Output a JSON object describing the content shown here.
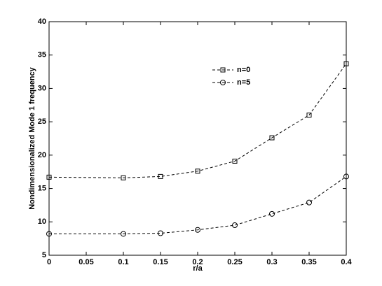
{
  "chart_data": {
    "type": "line",
    "xlabel": "r/a",
    "ylabel": "Nondimensionalized Mode 1 frequency",
    "x": [
      0,
      0.1,
      0.15,
      0.2,
      0.25,
      0.3,
      0.35,
      0.4
    ],
    "series": [
      {
        "name": "n=0",
        "color": "#000000",
        "marker": "square",
        "values": [
          16.7,
          16.6,
          16.8,
          17.6,
          19.1,
          22.6,
          26.0,
          33.7
        ]
      },
      {
        "name": "n=5",
        "color": "#000000",
        "marker": "circle",
        "values": [
          8.2,
          8.2,
          8.3,
          8.8,
          9.5,
          11.2,
          12.9,
          16.8
        ]
      }
    ],
    "xlim": [
      0,
      0.4
    ],
    "xticks": [
      0,
      0.05,
      0.1,
      0.15,
      0.2,
      0.25,
      0.3,
      0.35,
      0.4
    ],
    "ylim": [
      5,
      40
    ],
    "yticks": [
      5,
      10,
      15,
      20,
      25,
      30,
      35,
      40
    ],
    "grid": false
  }
}
